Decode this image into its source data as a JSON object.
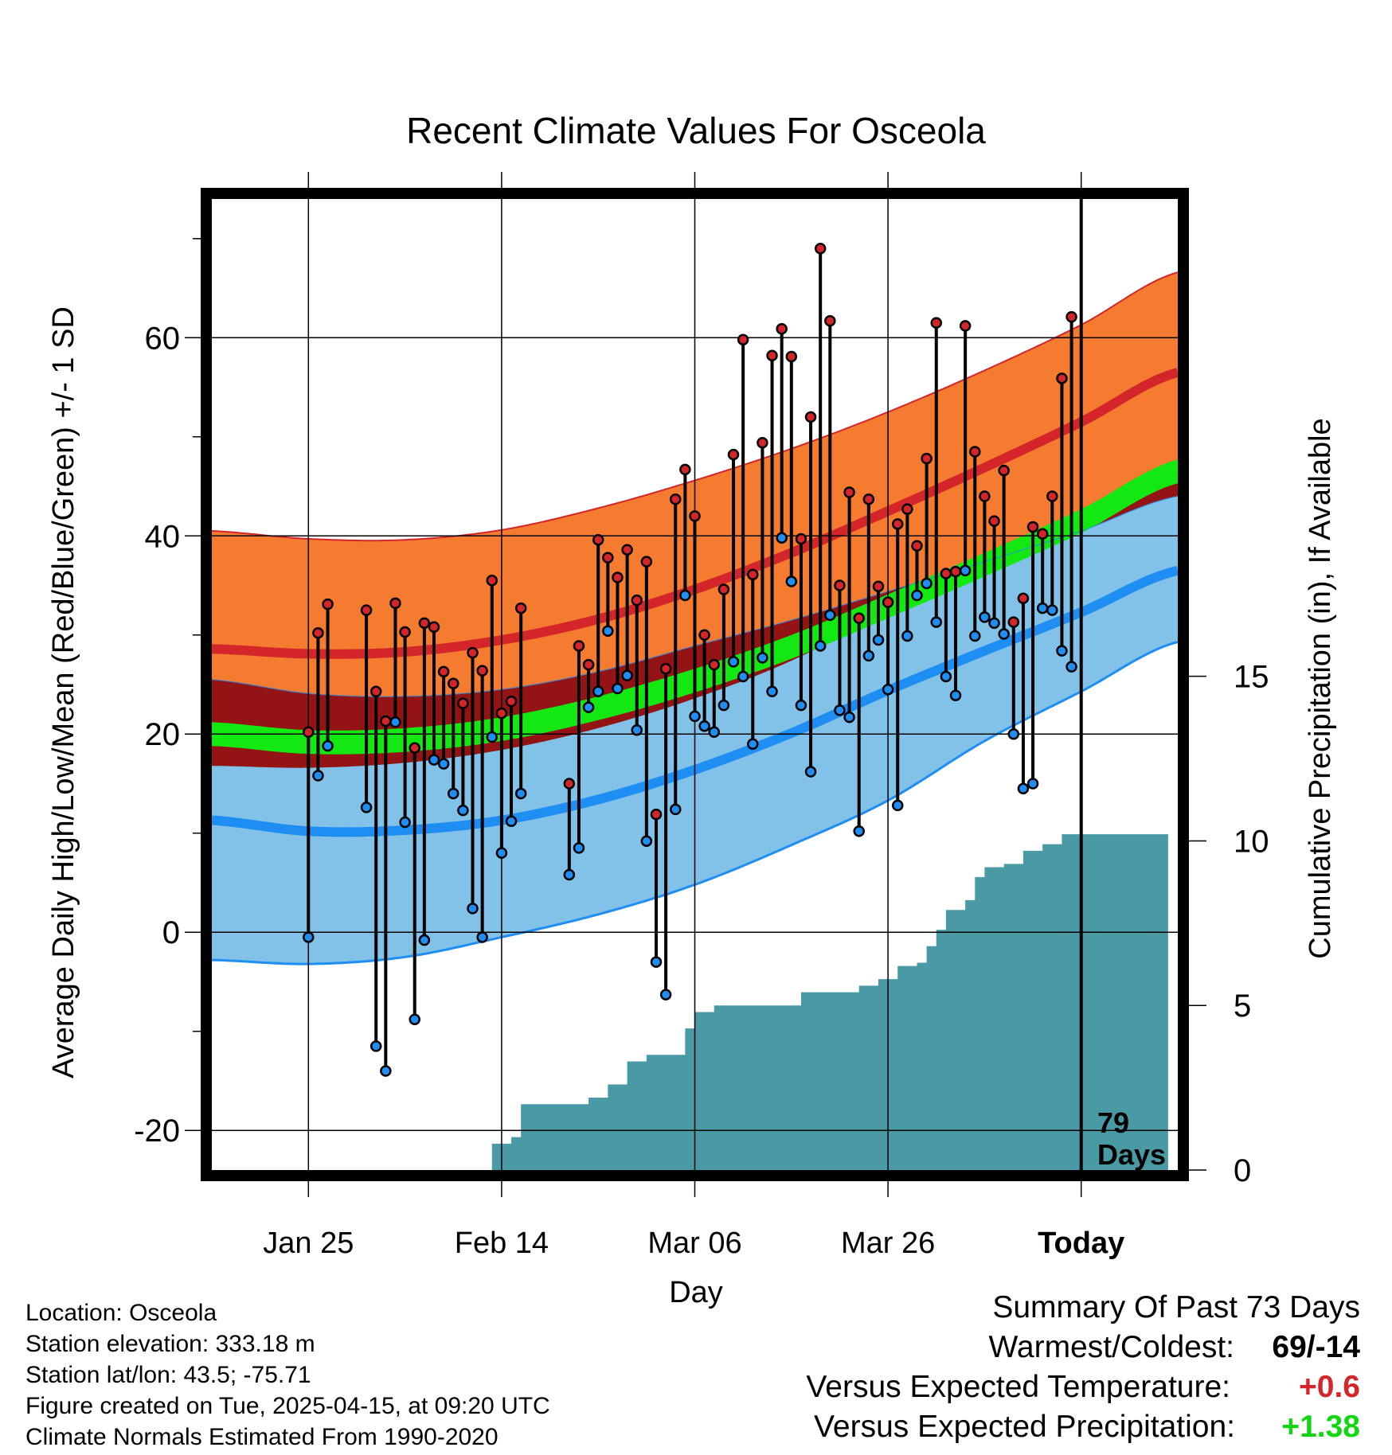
{
  "chart_data": {
    "type": "line",
    "title": "Recent Climate Values For Osceola",
    "xlabel": "Day",
    "ylabel": "Average Daily High/Low/Mean (Red/Blue/Green) +/- 1 SD",
    "y2label": "Cumulative Precipitation (in), If Available",
    "x_range_days": [
      -90,
      10
    ],
    "ylim": [
      -24,
      74
    ],
    "y_ticks": [
      "60",
      "40",
      "20",
      "0",
      "-20"
    ],
    "y2lim": [
      0,
      29.5
    ],
    "y2_ticks": [
      "15",
      "10",
      "5",
      "0"
    ],
    "x_tick_labels": [
      "Jan 25",
      "Feb 14",
      "Mar 06",
      "Mar 26",
      "Today"
    ],
    "x_tick_offsets_days": [
      -80,
      -60,
      -40,
      -20,
      0
    ],
    "today_marker": {
      "label_line1": "79",
      "label_line2": "Days"
    },
    "normals_day_offsets": [
      -90,
      -80,
      -70,
      -60,
      -50,
      -40,
      -30,
      -20,
      -10,
      0,
      10
    ],
    "normal_high_plus_sd": [
      40.5,
      39.7,
      39.6,
      40.6,
      42.8,
      45.6,
      48.8,
      52.5,
      56.7,
      61.3,
      66.6
    ],
    "normal_high": [
      28.6,
      28.1,
      28.3,
      29.5,
      31.6,
      34.6,
      38.3,
      42.5,
      46.9,
      51.5,
      56.5
    ],
    "normal_high_minus_sd": [
      16.8,
      16.6,
      17.1,
      18.4,
      20.6,
      23.6,
      27.4,
      32.4,
      37.1,
      41.5,
      46.3
    ],
    "normal_mean": [
      20.0,
      19.2,
      19.4,
      20.5,
      22.6,
      25.4,
      28.8,
      32.9,
      37.1,
      41.5,
      46.5
    ],
    "normal_low_plus_sd": [
      25.5,
      24.1,
      23.8,
      24.5,
      26.3,
      28.9,
      31.5,
      34.4,
      37.4,
      40.5,
      44.0
    ],
    "normal_low": [
      11.3,
      10.2,
      10.3,
      11.3,
      13.4,
      16.4,
      20.1,
      24.4,
      28.4,
      32.3,
      36.5
    ],
    "normal_low_minus_sd": [
      -2.8,
      -3.2,
      -2.5,
      -0.5,
      1.8,
      4.8,
      8.8,
      13.3,
      19.3,
      24.3,
      29.3
    ],
    "daily": [
      {
        "day": -80,
        "high": 20.2,
        "low": -0.5
      },
      {
        "day": -79,
        "high": 30.2,
        "low": 15.8
      },
      {
        "day": -78,
        "high": 33.1,
        "low": 18.8
      },
      {
        "day": -74,
        "high": 32.5,
        "low": 12.6
      },
      {
        "day": -73,
        "high": 24.3,
        "low": -11.5
      },
      {
        "day": -72,
        "high": 21.3,
        "low": -14.0
      },
      {
        "day": -71,
        "high": 33.2,
        "low": 21.2
      },
      {
        "day": -70,
        "high": 30.3,
        "low": 11.1
      },
      {
        "day": -69,
        "high": 18.6,
        "low": -8.8
      },
      {
        "day": -68,
        "high": 31.2,
        "low": -0.8
      },
      {
        "day": -67,
        "high": 30.8,
        "low": 17.4
      },
      {
        "day": -66,
        "high": 26.3,
        "low": 17.0
      },
      {
        "day": -65,
        "high": 25.1,
        "low": 14.0
      },
      {
        "day": -64,
        "high": 23.1,
        "low": 12.3
      },
      {
        "day": -63,
        "high": 28.2,
        "low": 2.4
      },
      {
        "day": -62,
        "high": 26.4,
        "low": -0.5
      },
      {
        "day": -61,
        "high": 35.5,
        "low": 19.7
      },
      {
        "day": -60,
        "high": 22.1,
        "low": 8.0
      },
      {
        "day": -59,
        "high": 23.3,
        "low": 11.2
      },
      {
        "day": -58,
        "high": 32.7,
        "low": 14.0
      },
      {
        "day": -53,
        "high": 15.0,
        "low": 5.8
      },
      {
        "day": -52,
        "high": 28.9,
        "low": 8.5
      },
      {
        "day": -51,
        "high": 27.0,
        "low": 22.7
      },
      {
        "day": -50,
        "high": 39.6,
        "low": 24.3
      },
      {
        "day": -49,
        "high": 37.8,
        "low": 30.4
      },
      {
        "day": -48,
        "high": 35.8,
        "low": 24.6
      },
      {
        "day": -47,
        "high": 38.6,
        "low": 25.9
      },
      {
        "day": -46,
        "high": 33.5,
        "low": 20.4
      },
      {
        "day": -45,
        "high": 37.4,
        "low": 9.2
      },
      {
        "day": -44,
        "high": 11.9,
        "low": -3.0
      },
      {
        "day": -43,
        "high": 26.6,
        "low": -6.3
      },
      {
        "day": -42,
        "high": 43.7,
        "low": 12.4
      },
      {
        "day": -41,
        "high": 46.7,
        "low": 34.0
      },
      {
        "day": -40,
        "high": 42.0,
        "low": 21.8
      },
      {
        "day": -39,
        "high": 30.0,
        "low": 20.8
      },
      {
        "day": -38,
        "high": 27.0,
        "low": 20.2
      },
      {
        "day": -37,
        "high": 34.6,
        "low": 22.9
      },
      {
        "day": -36,
        "high": 48.2,
        "low": 27.3
      },
      {
        "day": -35,
        "high": 59.8,
        "low": 25.8
      },
      {
        "day": -34,
        "high": 36.1,
        "low": 19.0
      },
      {
        "day": -33,
        "high": 49.4,
        "low": 27.7
      },
      {
        "day": -32,
        "high": 58.2,
        "low": 24.3
      },
      {
        "day": -31,
        "high": 60.9,
        "low": 39.8
      },
      {
        "day": -30,
        "high": 58.1,
        "low": 35.4
      },
      {
        "day": -29,
        "high": 39.7,
        "low": 22.9
      },
      {
        "day": -28,
        "high": 52.0,
        "low": 16.2
      },
      {
        "day": -27,
        "high": 69.0,
        "low": 28.9
      },
      {
        "day": -26,
        "high": 61.7,
        "low": 32.0
      },
      {
        "day": -25,
        "high": 35.0,
        "low": 22.4
      },
      {
        "day": -24,
        "high": 44.4,
        "low": 21.7
      },
      {
        "day": -23,
        "high": 31.7,
        "low": 10.2
      },
      {
        "day": -22,
        "high": 43.7,
        "low": 27.9
      },
      {
        "day": -21,
        "high": 34.9,
        "low": 29.5
      },
      {
        "day": -20,
        "high": 33.3,
        "low": 24.5
      },
      {
        "day": -19,
        "high": 41.2,
        "low": 12.8
      },
      {
        "day": -18,
        "high": 42.7,
        "low": 29.9
      },
      {
        "day": -17,
        "high": 39.0,
        "low": 34.0
      },
      {
        "day": -16,
        "high": 47.8,
        "low": 35.2
      },
      {
        "day": -15,
        "high": 61.5,
        "low": 31.3
      },
      {
        "day": -14,
        "high": 36.2,
        "low": 25.8
      },
      {
        "day": -13,
        "high": 36.4,
        "low": 23.9
      },
      {
        "day": -12,
        "high": 61.2,
        "low": 36.5
      },
      {
        "day": -11,
        "high": 48.5,
        "low": 29.9
      },
      {
        "day": -10,
        "high": 44.0,
        "low": 31.8
      },
      {
        "day": -9,
        "high": 41.5,
        "low": 31.2
      },
      {
        "day": -8,
        "high": 46.6,
        "low": 30.1
      },
      {
        "day": -7,
        "high": 31.3,
        "low": 20.0
      },
      {
        "day": -6,
        "high": 33.7,
        "low": 14.5
      },
      {
        "day": -5,
        "high": 40.9,
        "low": 15.0
      },
      {
        "day": -4,
        "high": 40.2,
        "low": 32.7
      },
      {
        "day": -3,
        "high": 44.0,
        "low": 32.5
      },
      {
        "day": -2,
        "high": 55.9,
        "low": 28.4
      },
      {
        "day": -1,
        "high": 62.1,
        "low": 26.8
      }
    ],
    "cumulative_precip": [
      {
        "day": -62,
        "value": 0.0
      },
      {
        "day": -61,
        "value": 0.8
      },
      {
        "day": -59,
        "value": 1.0
      },
      {
        "day": -58,
        "value": 2.0
      },
      {
        "day": -52,
        "value": 2.0
      },
      {
        "day": -51,
        "value": 2.2
      },
      {
        "day": -49,
        "value": 2.6
      },
      {
        "day": -47,
        "value": 3.3
      },
      {
        "day": -45,
        "value": 3.5
      },
      {
        "day": -42,
        "value": 3.5
      },
      {
        "day": -41,
        "value": 4.3
      },
      {
        "day": -40,
        "value": 4.8
      },
      {
        "day": -38,
        "value": 5.0
      },
      {
        "day": -30,
        "value": 5.0
      },
      {
        "day": -29,
        "value": 5.4
      },
      {
        "day": -24,
        "value": 5.4
      },
      {
        "day": -23,
        "value": 5.6
      },
      {
        "day": -21,
        "value": 5.8
      },
      {
        "day": -19,
        "value": 6.2
      },
      {
        "day": -17,
        "value": 6.3
      },
      {
        "day": -16,
        "value": 6.8
      },
      {
        "day": -15,
        "value": 7.3
      },
      {
        "day": -14,
        "value": 7.9
      },
      {
        "day": -12,
        "value": 8.2
      },
      {
        "day": -11,
        "value": 8.9
      },
      {
        "day": -10,
        "value": 9.2
      },
      {
        "day": -8,
        "value": 9.3
      },
      {
        "day": -6,
        "value": 9.7
      },
      {
        "day": -4,
        "value": 9.9
      },
      {
        "day": -2,
        "value": 10.2
      },
      {
        "day": 0,
        "value": 10.2
      },
      {
        "day": 9,
        "value": 10.2
      }
    ]
  },
  "info": {
    "location": "Location: Osceola",
    "elevation": "Station elevation: 333.18 m",
    "latlon": "Station lat/lon: 43.5; -75.71",
    "created": "Figure created on Tue, 2025-04-15, at 09:20 UTC",
    "normals": "Climate Normals Estimated From 1990-2020"
  },
  "summary": {
    "title": "Summary Of Past 73 Days",
    "warm_cold_label": "Warmest/Coldest:",
    "warm_cold_value": "69/-14",
    "temp_label": "Versus Expected Temperature:",
    "temp_value": "+0.6",
    "precip_label": "Versus Expected Precipitation:",
    "precip_value": "+1.38"
  },
  "colors": {
    "high_band": "#f47b30",
    "high_line": "#d4262a",
    "high_low_overlap": "#941416",
    "low_band": "#82c2e9",
    "low_line": "#1e8ef2",
    "mean_band": "#13e813",
    "precip_fill": "#4a9aa5",
    "high_point": "#d4262a",
    "low_point": "#1e8ef2",
    "temp_value": "#d4262a",
    "precip_value": "#13d613"
  }
}
